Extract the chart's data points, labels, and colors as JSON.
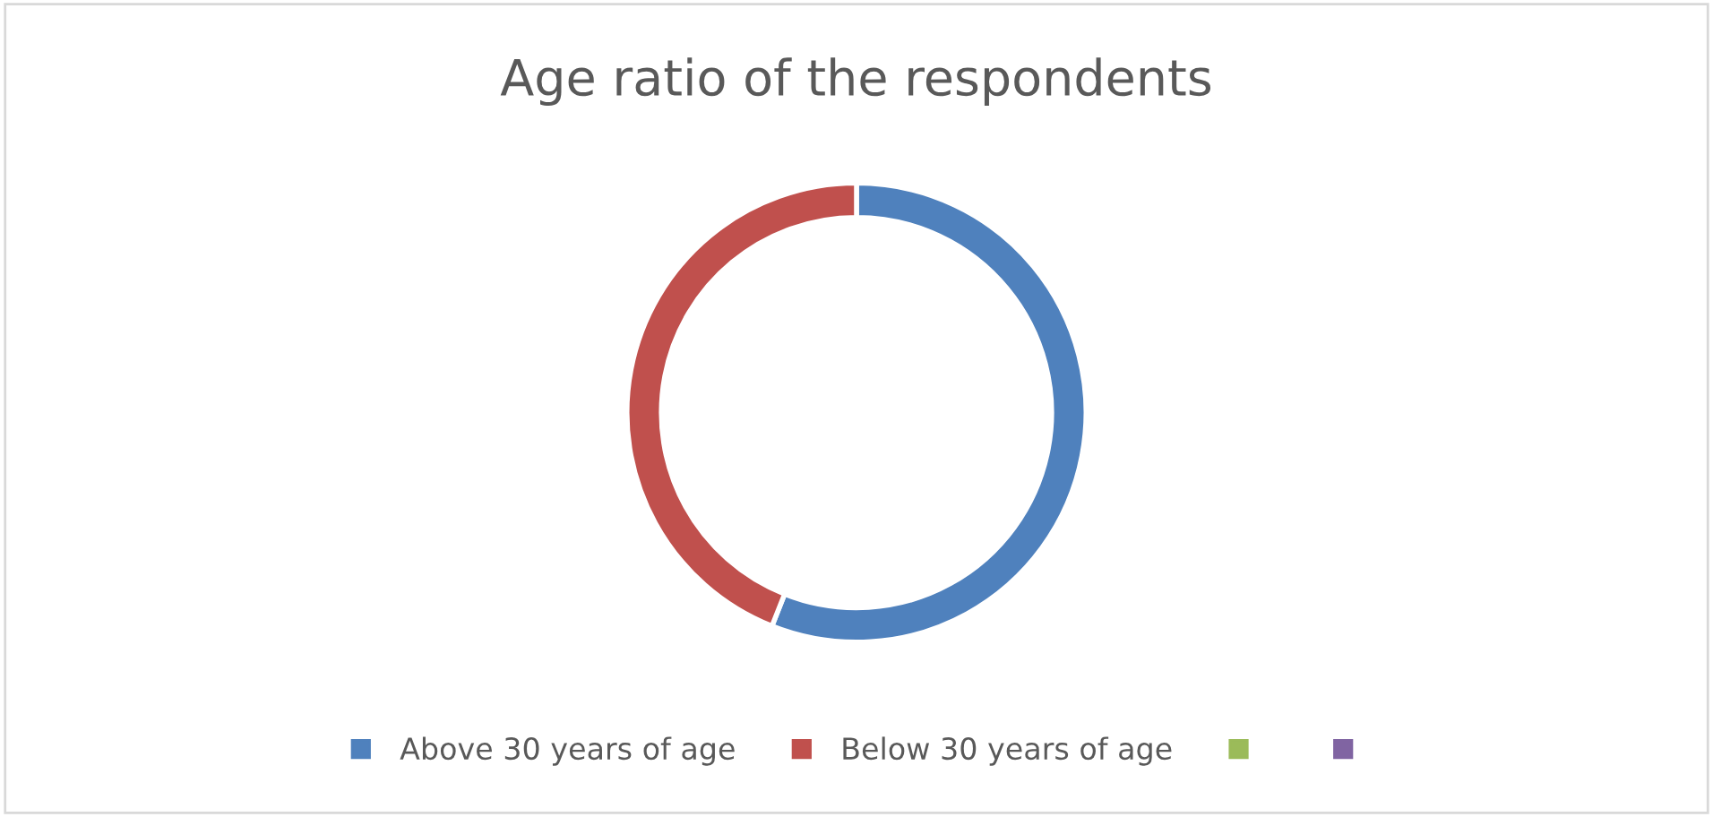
{
  "chart_data": {
    "type": "donut",
    "title": "Age ratio of the respondents",
    "categories": [
      "Above 30 years of age",
      "Below 30 years of age",
      null,
      null
    ],
    "values": [
      56,
      44,
      0,
      0
    ],
    "colors": [
      "#4f81bd",
      "#c0504d",
      "#9bbb59",
      "#8064a2"
    ],
    "legend": "bottom"
  }
}
